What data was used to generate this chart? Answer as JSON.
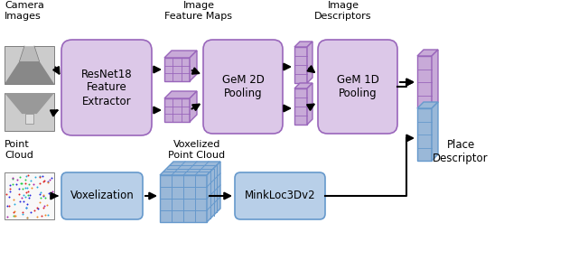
{
  "bg_color": "#ffffff",
  "purple_box_fill": "#dcc8e8",
  "purple_box_edge": "#9966bb",
  "blue_box_fill": "#b8cfe8",
  "blue_box_edge": "#6699cc",
  "purple_3d_fill": "#c8aad8",
  "purple_3d_edge": "#9966bb",
  "blue_3d_fill": "#9ab8d8",
  "blue_3d_edge": "#6699cc",
  "text_color": "#000000",
  "labels": {
    "camera_images": "Camera\nImages",
    "point_cloud": "Point\nCloud",
    "resnet": "ResNet18\nFeature\nExtractor",
    "gem2d": "GeM 2D\nPooling",
    "gem1d": "GeM 1D\nPooling",
    "voxelization": "Voxelization",
    "minkloc": "MinkLoc3Dv2",
    "image_feature_maps": "Image\nFeature Maps",
    "image_descriptors": "Image\nDescriptors",
    "voxelized_point_cloud": "Voxelized\nPoint Cloud",
    "place_descriptor": "Place\nDescriptor"
  }
}
